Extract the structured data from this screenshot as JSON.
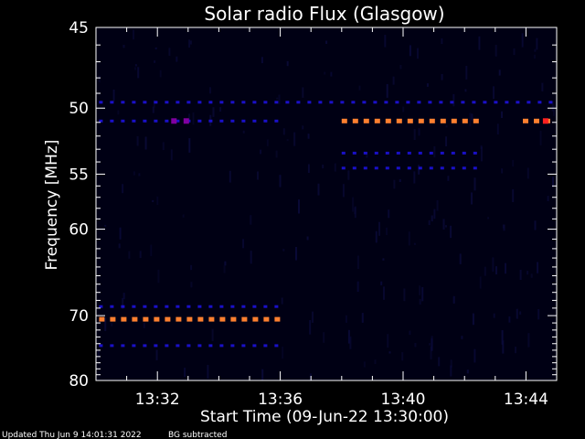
{
  "chart_data": {
    "type": "heatmap",
    "title": "Solar radio Flux (Glasgow)",
    "xlabel": "Start Time (09-Jun-22 13:30:00)",
    "ylabel": "Frequency [MHz]",
    "y_ticks": [
      45,
      50,
      55,
      60,
      70,
      80
    ],
    "x_ticks": [
      "13:32",
      "13:36",
      "13:40",
      "13:44"
    ],
    "x_tick_minutes": [
      2,
      6,
      10,
      14
    ],
    "xlim_minutes": [
      0,
      15
    ],
    "ylim_mhz": [
      45,
      80
    ],
    "y_scale": "reciprocal",
    "colormap": {
      "background": "#000014",
      "low": "#1a10c8",
      "mid": "#8000a0",
      "high": "#ff8030",
      "peak": "#ff2020"
    },
    "bands": [
      {
        "freq": 49.6,
        "t_start": 0.1,
        "t_end": 15.0,
        "level": "low"
      },
      {
        "freq": 50.9,
        "t_start": 0.1,
        "t_end": 6.0,
        "level": "low"
      },
      {
        "freq": 50.9,
        "t_start": 8.0,
        "t_end": 12.7,
        "level": "high"
      },
      {
        "freq": 50.9,
        "t_start": 13.9,
        "t_end": 15.0,
        "level": "high"
      },
      {
        "freq": 53.3,
        "t_start": 8.0,
        "t_end": 12.7,
        "level": "low"
      },
      {
        "freq": 54.5,
        "t_start": 8.0,
        "t_end": 12.7,
        "level": "low"
      },
      {
        "freq": 68.8,
        "t_start": 0.1,
        "t_end": 6.0,
        "level": "low"
      },
      {
        "freq": 70.5,
        "t_start": 0.1,
        "t_end": 6.0,
        "level": "high"
      },
      {
        "freq": 74.3,
        "t_start": 0.1,
        "t_end": 6.0,
        "level": "low"
      }
    ]
  },
  "footer": {
    "updated": "Updated Thu Jun  9 14:01:31 2022",
    "bg_note": "BG subtracted"
  }
}
